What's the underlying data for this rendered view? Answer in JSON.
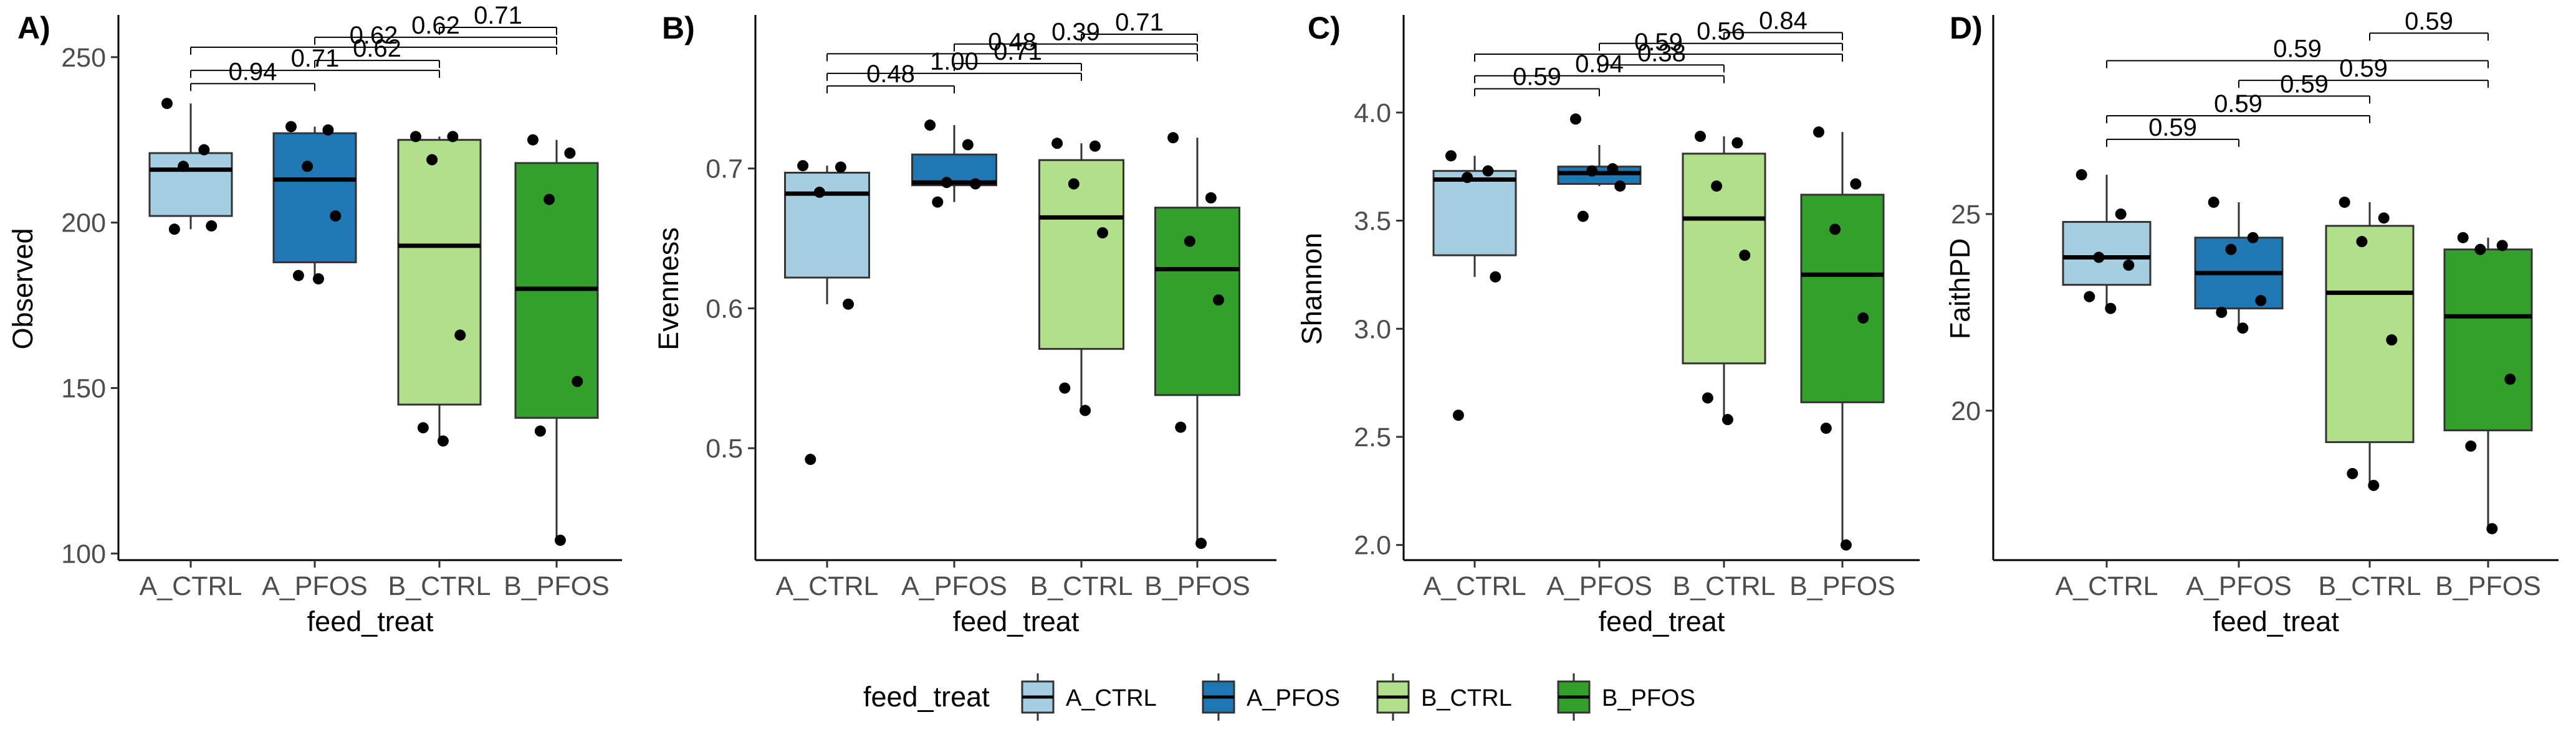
{
  "chart_data": [
    {
      "type": "box",
      "panel_label": "A)",
      "xlabel": "feed_treat",
      "ylabel": "Observed",
      "ylim": [
        98,
        262
      ],
      "yticks": [
        100,
        150,
        200,
        250
      ],
      "categories": [
        "A_CTRL",
        "A_PFOS",
        "B_CTRL",
        "B_PFOS"
      ],
      "boxes": [
        {
          "q1": 202,
          "median": 216,
          "q3": 221,
          "whisker_low": 198,
          "whisker_high": 236
        },
        {
          "q1": 188,
          "median": 213,
          "q3": 227,
          "whisker_low": 183,
          "whisker_high": 229
        },
        {
          "q1": 145,
          "median": 193,
          "q3": 225,
          "whisker_low": 133,
          "whisker_high": 226
        },
        {
          "q1": 141,
          "median": 180,
          "q3": 218,
          "whisker_low": 104,
          "whisker_high": 225
        }
      ],
      "points": [
        [
          236,
          222,
          217,
          199,
          198
        ],
        [
          229,
          228,
          217,
          202,
          184,
          183
        ],
        [
          226,
          226,
          219,
          166,
          138,
          134
        ],
        [
          225,
          221,
          207,
          152,
          137,
          104
        ]
      ],
      "comparisons": [
        {
          "from": 0,
          "to": 1,
          "y": 242,
          "label": "0.94"
        },
        {
          "from": 0,
          "to": 2,
          "y": 246,
          "label": "0.71"
        },
        {
          "from": 1,
          "to": 2,
          "y": 249,
          "label": "0.62"
        },
        {
          "from": 0,
          "to": 3,
          "y": 253,
          "label": "0.62"
        },
        {
          "from": 1,
          "to": 3,
          "y": 256,
          "label": "0.62"
        },
        {
          "from": 2,
          "to": 3,
          "y": 259,
          "label": "0.71"
        }
      ]
    },
    {
      "type": "box",
      "panel_label": "B)",
      "xlabel": "feed_treat",
      "ylabel": "Evenness",
      "ylim": [
        0.42,
        0.808
      ],
      "yticks": [
        0.5,
        0.6,
        0.7
      ],
      "tick_labels": [
        "0.5",
        "0.6",
        "0.7"
      ],
      "categories": [
        "A_CTRL",
        "A_PFOS",
        "B_CTRL",
        "B_PFOS"
      ],
      "boxes": [
        {
          "q1": 0.622,
          "median": 0.682,
          "q3": 0.697,
          "whisker_low": 0.603,
          "whisker_high": 0.702
        },
        {
          "q1": 0.688,
          "median": 0.69,
          "q3": 0.71,
          "whisker_low": 0.676,
          "whisker_high": 0.731
        },
        {
          "q1": 0.571,
          "median": 0.665,
          "q3": 0.706,
          "whisker_low": 0.527,
          "whisker_high": 0.718
        },
        {
          "q1": 0.538,
          "median": 0.628,
          "q3": 0.672,
          "whisker_low": 0.432,
          "whisker_high": 0.722
        }
      ],
      "points": [
        [
          0.702,
          0.701,
          0.683,
          0.603,
          0.492
        ],
        [
          0.731,
          0.717,
          0.69,
          0.689,
          0.676
        ],
        [
          0.718,
          0.716,
          0.689,
          0.654,
          0.543,
          0.527
        ],
        [
          0.722,
          0.679,
          0.648,
          0.606,
          0.515,
          0.432
        ]
      ],
      "comparisons": [
        {
          "from": 0,
          "to": 1,
          "y": 0.759,
          "label": "0.48"
        },
        {
          "from": 0,
          "to": 2,
          "y": 0.768,
          "label": "1.00"
        },
        {
          "from": 1,
          "to": 2,
          "y": 0.775,
          "label": "0.71"
        },
        {
          "from": 0,
          "to": 3,
          "y": 0.782,
          "label": "0.48"
        },
        {
          "from": 1,
          "to": 3,
          "y": 0.789,
          "label": "0.39"
        },
        {
          "from": 2,
          "to": 3,
          "y": 0.796,
          "label": "0.71"
        }
      ]
    },
    {
      "type": "box",
      "panel_label": "C)",
      "xlabel": "feed_treat",
      "ylabel": "Shannon",
      "ylim": [
        1.93,
        4.44
      ],
      "yticks": [
        2.0,
        2.5,
        3.0,
        3.5,
        4.0
      ],
      "tick_labels": [
        "2.0",
        "2.5",
        "3.0",
        "3.5",
        "4.0"
      ],
      "categories": [
        "A_CTRL",
        "A_PFOS",
        "B_CTRL",
        "B_PFOS"
      ],
      "boxes": [
        {
          "q1": 3.34,
          "median": 3.69,
          "q3": 3.73,
          "whisker_low": 3.24,
          "whisker_high": 3.8
        },
        {
          "q1": 3.67,
          "median": 3.72,
          "q3": 3.75,
          "whisker_low": 3.66,
          "whisker_high": 3.85
        },
        {
          "q1": 2.84,
          "median": 3.51,
          "q3": 3.81,
          "whisker_low": 2.58,
          "whisker_high": 3.89
        },
        {
          "q1": 2.66,
          "median": 3.25,
          "q3": 3.62,
          "whisker_low": 2.0,
          "whisker_high": 3.91
        }
      ],
      "points": [
        [
          3.8,
          3.73,
          3.7,
          3.24,
          2.6
        ],
        [
          3.97,
          3.74,
          3.73,
          3.66,
          3.52
        ],
        [
          3.89,
          3.86,
          3.66,
          3.34,
          2.68,
          2.58
        ],
        [
          3.91,
          3.67,
          3.46,
          3.05,
          2.54,
          2.0
        ]
      ],
      "comparisons": [
        {
          "from": 0,
          "to": 1,
          "y": 4.11,
          "label": "0.59"
        },
        {
          "from": 0,
          "to": 2,
          "y": 4.17,
          "label": "0.94"
        },
        {
          "from": 1,
          "to": 2,
          "y": 4.22,
          "label": "0.38"
        },
        {
          "from": 0,
          "to": 3,
          "y": 4.27,
          "label": "0.59"
        },
        {
          "from": 1,
          "to": 3,
          "y": 4.32,
          "label": "0.56"
        },
        {
          "from": 2,
          "to": 3,
          "y": 4.37,
          "label": "0.84"
        }
      ]
    },
    {
      "type": "box",
      "panel_label": "D)",
      "xlabel": "feed_treat",
      "ylabel": "FaithPD",
      "ylim": [
        16.2,
        30.0
      ],
      "yticks": [
        20,
        25
      ],
      "categories": [
        "A_CTRL",
        "A_PFOS",
        "B_CTRL",
        "B_PFOS"
      ],
      "boxes": [
        {
          "q1": 23.2,
          "median": 23.9,
          "q3": 24.8,
          "whisker_low": 22.6,
          "whisker_high": 26.0
        },
        {
          "q1": 22.6,
          "median": 23.5,
          "q3": 24.4,
          "whisker_low": 22.1,
          "whisker_high": 25.3
        },
        {
          "q1": 19.2,
          "median": 23.0,
          "q3": 24.7,
          "whisker_low": 18.1,
          "whisker_high": 25.3
        },
        {
          "q1": 19.5,
          "median": 22.4,
          "q3": 24.1,
          "whisker_low": 17.0,
          "whisker_high": 24.4
        }
      ],
      "points": [
        [
          26.0,
          25.0,
          23.9,
          23.7,
          22.9,
          22.6
        ],
        [
          25.3,
          24.4,
          24.1,
          22.8,
          22.5,
          22.1
        ],
        [
          25.3,
          24.9,
          24.3,
          21.8,
          18.4,
          18.1
        ],
        [
          24.4,
          24.2,
          24.1,
          20.8,
          19.1,
          17.0
        ]
      ],
      "comparisons": [
        {
          "from": 0,
          "to": 1,
          "y": 26.9,
          "label": "0.59"
        },
        {
          "from": 0,
          "to": 2,
          "y": 27.5,
          "label": "0.59"
        },
        {
          "from": 1,
          "to": 2,
          "y": 28.0,
          "label": "0.59"
        },
        {
          "from": 1,
          "to": 3,
          "y": 28.4,
          "label": "0.59"
        },
        {
          "from": 0,
          "to": 3,
          "y": 28.9,
          "label": "0.59"
        },
        {
          "from": 2,
          "to": 3,
          "y": 29.6,
          "label": "0.59"
        }
      ]
    }
  ],
  "legend": {
    "title": "feed_treat",
    "position": "bottom",
    "items": [
      {
        "label": "A_CTRL",
        "color": "#A6CEE3"
      },
      {
        "label": "A_PFOS",
        "color": "#1F78B4"
      },
      {
        "label": "B_CTRL",
        "color": "#B2DF8A"
      },
      {
        "label": "B_PFOS",
        "color": "#33A02C"
      }
    ]
  },
  "colors": [
    "#A6CEE3",
    "#1F78B4",
    "#B2DF8A",
    "#33A02C"
  ]
}
